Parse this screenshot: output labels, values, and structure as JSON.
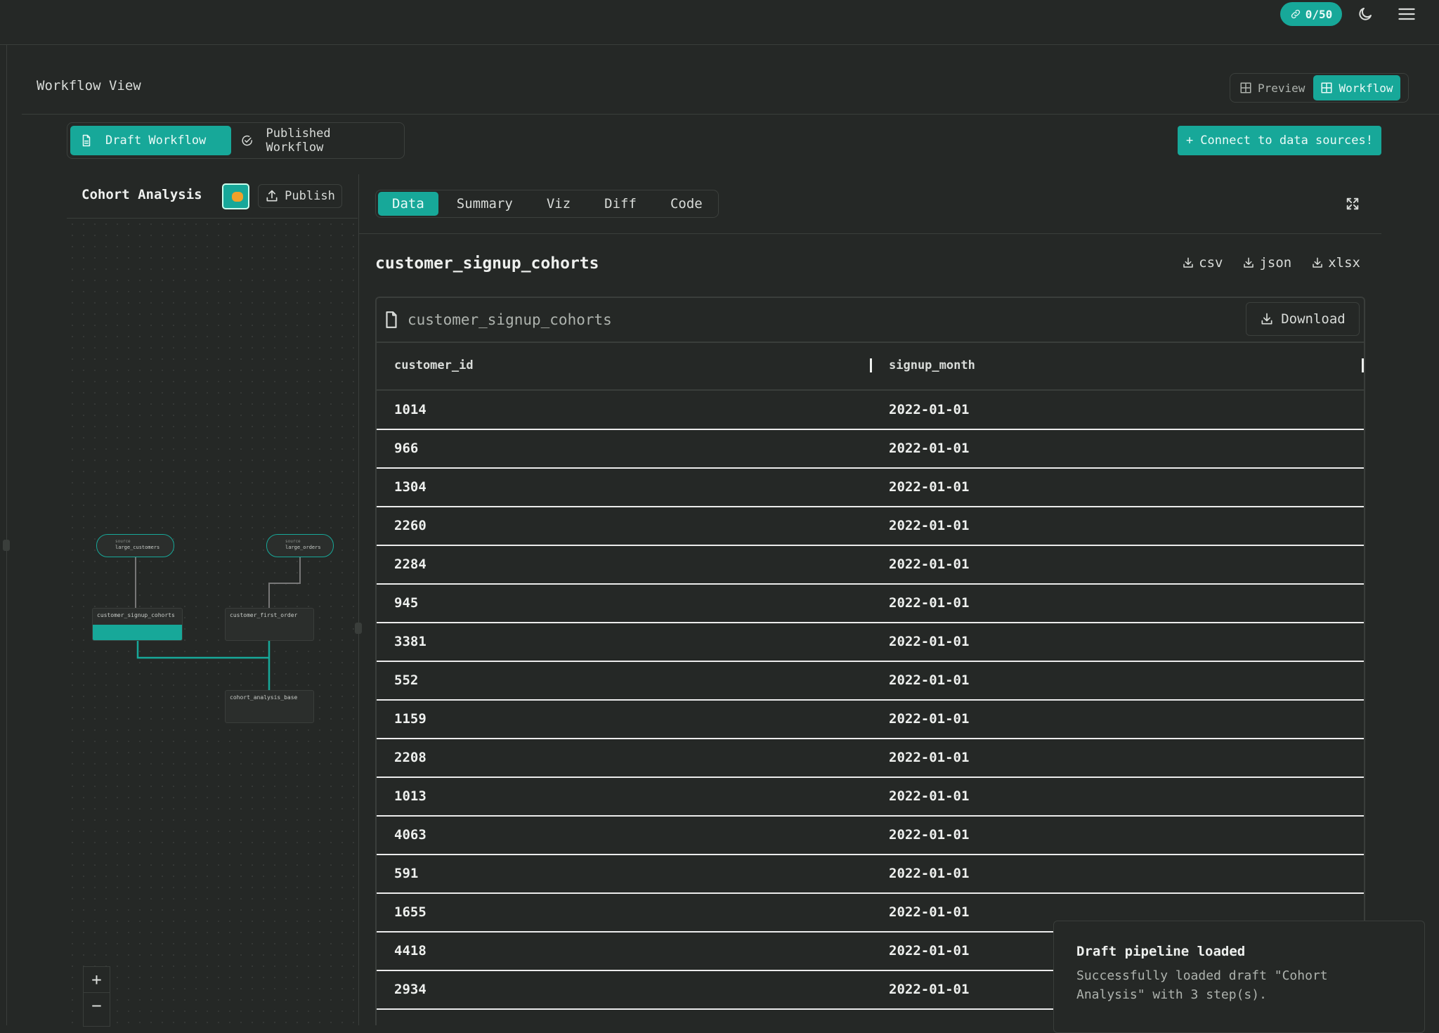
{
  "header": {
    "usage": "0/50"
  },
  "view": {
    "title": "Workflow View",
    "modes": [
      "Preview",
      "Workflow"
    ]
  },
  "workflow_tabs": [
    "Draft Workflow",
    "Published Workflow"
  ],
  "connect_button": "Connect to data sources!",
  "pipeline": {
    "title": "Cohort Analysis",
    "publish": "Publish",
    "nodes": [
      {
        "kind": "source",
        "label": "large_customers"
      },
      {
        "kind": "source",
        "label": "large_orders"
      },
      {
        "label": "customer_signup_cohorts"
      },
      {
        "label": "customer_first_order"
      },
      {
        "label": "cohort_analysis_base"
      }
    ]
  },
  "tabs": [
    "Data",
    "Summary",
    "Viz",
    "Diff",
    "Code"
  ],
  "dataset": {
    "title": "customer_signup_cohorts",
    "downloads": [
      "csv",
      "json",
      "xlsx"
    ],
    "file": "customer_signup_cohorts",
    "download": "Download",
    "columns": [
      "customer_id",
      "signup_month"
    ],
    "rows": [
      [
        1014,
        "2022-01-01"
      ],
      [
        966,
        "2022-01-01"
      ],
      [
        1304,
        "2022-01-01"
      ],
      [
        2260,
        "2022-01-01"
      ],
      [
        2284,
        "2022-01-01"
      ],
      [
        945,
        "2022-01-01"
      ],
      [
        3381,
        "2022-01-01"
      ],
      [
        552,
        "2022-01-01"
      ],
      [
        1159,
        "2022-01-01"
      ],
      [
        2208,
        "2022-01-01"
      ],
      [
        1013,
        "2022-01-01"
      ],
      [
        4063,
        "2022-01-01"
      ],
      [
        591,
        "2022-01-01"
      ],
      [
        1655,
        "2022-01-01"
      ],
      [
        4418,
        "2022-01-01"
      ],
      [
        2934,
        "2022-01-01"
      ]
    ]
  },
  "toast": {
    "title": "Draft pipeline loaded",
    "message": "Successfully loaded draft \"Cohort Analysis\" with 3 step(s)."
  }
}
